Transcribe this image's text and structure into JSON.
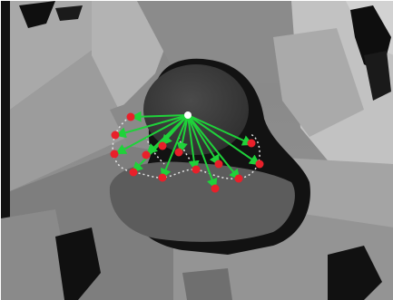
{
  "image": {
    "kind": "depth-map-hand-pose",
    "palette": {
      "background": "#8d8d8d",
      "near": "#5f5f5f",
      "far": "#c9c9c9",
      "shadow": "#0c0c0c",
      "joint": "#e8202a",
      "vector": "#1fd23a",
      "outline": "#e6e6e6",
      "origin": "#ffffff"
    },
    "joint_count": 16,
    "vector_count": 14
  }
}
